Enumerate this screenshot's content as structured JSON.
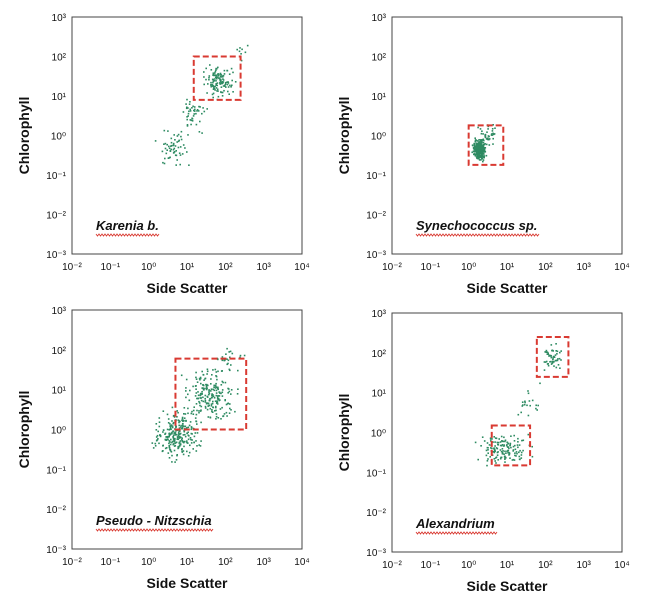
{
  "colors": {
    "points": "#2e8b62",
    "gate": "#d93a32",
    "frame": "#444444"
  },
  "chart_data": [
    {
      "type": "scatter",
      "xlabel": "Side Scatter",
      "ylabel": "Chlorophyll",
      "xscale": "log",
      "yscale": "log",
      "xlim": [
        0.01,
        10000
      ],
      "ylim": [
        0.001,
        1000
      ],
      "x_ticks": [
        "10⁻²",
        "10⁻¹",
        "10⁰",
        "10¹",
        "10²",
        "10³",
        "10⁴"
      ],
      "y_ticks": [
        "10³",
        "10²",
        "10¹",
        "10⁰",
        "10⁻¹",
        "10⁻²",
        "10⁻³"
      ],
      "annotation": "Karenia b.",
      "gates": [
        {
          "x": [
            15,
            250
          ],
          "y": [
            8,
            100
          ]
        }
      ],
      "clusters": [
        {
          "n": 60,
          "x": [
            0.8,
            20
          ],
          "y": [
            0.12,
            2
          ]
        },
        {
          "n": 130,
          "x": [
            20,
            200
          ],
          "y": [
            8,
            80
          ]
        },
        {
          "n": 45,
          "x": [
            5,
            40
          ],
          "y": [
            1,
            15
          ]
        },
        {
          "n": 8,
          "x": [
            150,
            400
          ],
          "y": [
            60,
            300
          ]
        }
      ]
    },
    {
      "type": "scatter",
      "xlabel": "Side Scatter",
      "ylabel": "Chlorophyll",
      "xscale": "log",
      "yscale": "log",
      "xlim": [
        0.01,
        10000
      ],
      "ylim": [
        0.001,
        1000
      ],
      "x_ticks": [
        "10⁻²",
        "10⁻¹",
        "10⁰",
        "10¹",
        "10²",
        "10³",
        "10⁴"
      ],
      "y_ticks": [
        "10³",
        "10²",
        "10¹",
        "10⁰",
        "10⁻¹",
        "10⁻²",
        "10⁻³"
      ],
      "annotation": "Synechococcus sp.",
      "gates": [
        {
          "x": [
            1,
            8
          ],
          "y": [
            0.18,
            1.8
          ]
        }
      ],
      "clusters": [
        {
          "n": 300,
          "x": [
            1.1,
            3
          ],
          "y": [
            0.2,
            1
          ]
        },
        {
          "n": 40,
          "x": [
            1.5,
            6
          ],
          "y": [
            0.4,
            2.5
          ]
        }
      ]
    },
    {
      "type": "scatter",
      "xlabel": "Side Scatter",
      "ylabel": "Chlorophyll",
      "xscale": "log",
      "yscale": "log",
      "xlim": [
        0.01,
        10000
      ],
      "ylim": [
        0.001,
        1000
      ],
      "x_ticks": [
        "10⁻²",
        "10⁻¹",
        "10⁰",
        "10¹",
        "10²",
        "10³",
        "10⁴"
      ],
      "y_ticks": [
        "10³",
        "10²",
        "10¹",
        "10⁰",
        "10⁻¹",
        "10⁻²",
        "10⁻³"
      ],
      "annotation": "Pseudo - Nitzschia",
      "gates": [
        {
          "x": [
            5,
            350
          ],
          "y": [
            1,
            60
          ]
        }
      ],
      "clusters": [
        {
          "n": 260,
          "x": [
            0.9,
            30
          ],
          "y": [
            0.12,
            5
          ]
        },
        {
          "n": 220,
          "x": [
            5,
            300
          ],
          "y": [
            1,
            50
          ]
        },
        {
          "n": 30,
          "x": [
            30,
            400
          ],
          "y": [
            20,
            150
          ]
        }
      ]
    },
    {
      "type": "scatter",
      "xlabel": "Side Scatter",
      "ylabel": "Chlorophyll",
      "xscale": "log",
      "yscale": "log",
      "xlim": [
        0.01,
        10000
      ],
      "ylim": [
        0.001,
        1000
      ],
      "x_ticks": [
        "10⁻²",
        "10⁻¹",
        "10⁰",
        "10¹",
        "10²",
        "10³",
        "10⁴"
      ],
      "y_ticks": [
        "10³",
        "10²",
        "10¹",
        "10⁰",
        "10⁻¹",
        "10⁻²",
        "10⁻³"
      ],
      "annotation": "Alexandrium",
      "gates": [
        {
          "x": [
            4,
            40
          ],
          "y": [
            0.15,
            1.5
          ]
        },
        {
          "x": [
            60,
            400
          ],
          "y": [
            25,
            250
          ]
        }
      ],
      "clusters": [
        {
          "n": 150,
          "x": [
            1,
            60
          ],
          "y": [
            0.12,
            1.5
          ]
        },
        {
          "n": 55,
          "x": [
            60,
            300
          ],
          "y": [
            30,
            200
          ]
        },
        {
          "n": 20,
          "x": [
            15,
            80
          ],
          "y": [
            1.5,
            30
          ]
        }
      ]
    }
  ]
}
